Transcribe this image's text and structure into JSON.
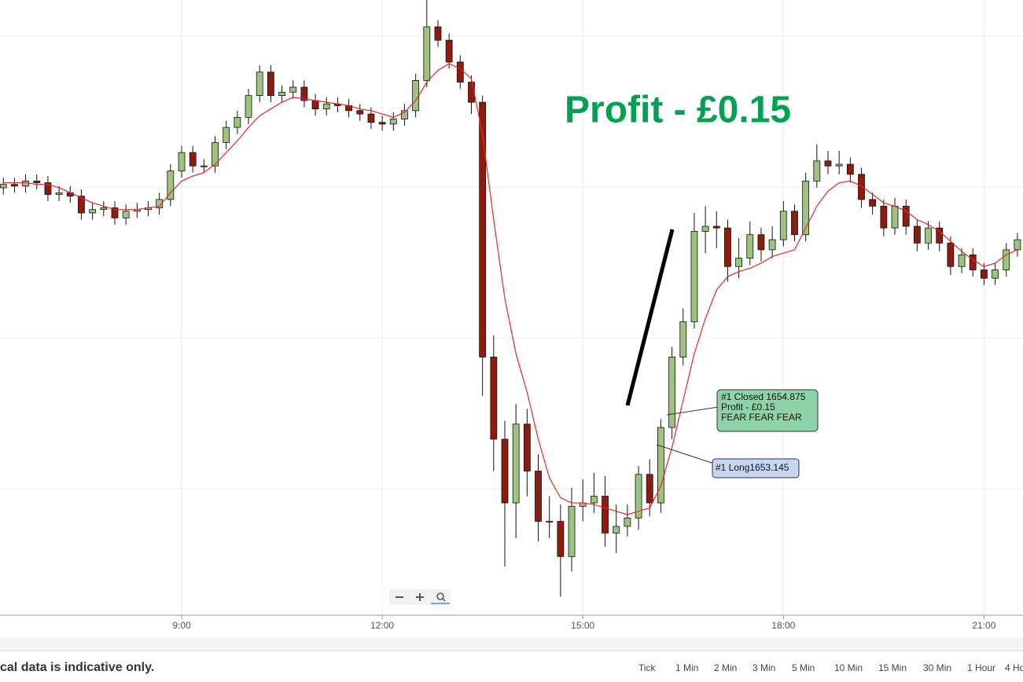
{
  "chart_data": {
    "type": "candlestick",
    "title": "Profit - £0.15",
    "xlim": [
      377,
      1295
    ],
    "xticks": [
      {
        "value": 540,
        "label": "9:00"
      },
      {
        "value": 720,
        "label": "12:00"
      },
      {
        "value": 900,
        "label": "15:00"
      },
      {
        "value": 1080,
        "label": "18:00"
      },
      {
        "value": 1260,
        "label": "21:00"
      }
    ],
    "ylim": [
      1642.9,
      1679.6
    ],
    "grid": true,
    "up_color": "#9dc47f",
    "down_color": "#8e1b0e",
    "x": [
      380,
      390,
      400,
      410,
      420,
      430,
      440,
      450,
      460,
      470,
      480,
      490,
      500,
      510,
      520,
      530,
      540,
      550,
      560,
      570,
      580,
      590,
      600,
      610,
      620,
      630,
      640,
      650,
      660,
      670,
      680,
      690,
      700,
      710,
      720,
      730,
      740,
      750,
      760,
      770,
      780,
      790,
      800,
      810,
      820,
      830,
      840,
      850,
      860,
      870,
      880,
      890,
      900,
      910,
      920,
      930,
      940,
      950,
      960,
      970,
      980,
      990,
      1000,
      1010,
      1020,
      1030,
      1040,
      1050,
      1060,
      1070,
      1080,
      1090,
      1100,
      1110,
      1120,
      1130,
      1140,
      1150,
      1160,
      1170,
      1180,
      1190,
      1200,
      1210,
      1220,
      1230,
      1240,
      1250,
      1260,
      1270,
      1280,
      1290
    ],
    "open": [
      1668.4,
      1668.6,
      1668.5,
      1668.8,
      1668.7,
      1668.0,
      1668.1,
      1667.9,
      1666.9,
      1667.1,
      1667.2,
      1666.6,
      1667.0,
      1667.1,
      1667.2,
      1667.7,
      1669.4,
      1670.5,
      1669.7,
      1669.7,
      1671.1,
      1672.0,
      1672.6,
      1673.9,
      1675.3,
      1673.9,
      1674.1,
      1674.4,
      1673.6,
      1673.1,
      1673.4,
      1673.3,
      1673.0,
      1672.8,
      1672.3,
      1672.2,
      1672.5,
      1673.0,
      1674.8,
      1678.0,
      1677.2,
      1675.9,
      1674.7,
      1673.5,
      1658.3,
      1653.4,
      1649.6,
      1654.3,
      1651.5,
      1648.5,
      1648.5,
      1646.4,
      1649.4,
      1649.6,
      1650.0,
      1647.8,
      1648.2,
      1648.7,
      1651.3,
      1649.6,
      1654.1,
      1658.3,
      1660.4,
      1665.8,
      1666.1,
      1666.0,
      1663.7,
      1664.2,
      1665.6,
      1664.7,
      1665.3,
      1667.0,
      1665.6,
      1668.8,
      1670.0,
      1669.7,
      1669.8,
      1669.2,
      1667.7,
      1667.3,
      1666.0,
      1667.3,
      1666.1,
      1665.1,
      1666.0,
      1665.1,
      1663.7,
      1664.4,
      1663.5,
      1663.0,
      1663.5,
      1664.7
    ],
    "high": [
      1669.0,
      1669.0,
      1669.2,
      1669.2,
      1669.1,
      1668.5,
      1668.5,
      1668.3,
      1667.5,
      1667.6,
      1667.6,
      1667.4,
      1667.5,
      1667.6,
      1668.1,
      1669.8,
      1670.9,
      1670.9,
      1670.1,
      1671.5,
      1672.4,
      1673.0,
      1674.3,
      1675.7,
      1675.7,
      1674.5,
      1674.8,
      1674.8,
      1674.0,
      1673.8,
      1673.8,
      1673.7,
      1673.4,
      1673.2,
      1672.7,
      1672.9,
      1673.4,
      1675.2,
      1679.6,
      1678.4,
      1677.6,
      1676.3,
      1675.1,
      1673.9,
      1659.6,
      1654.5,
      1655.5,
      1655.2,
      1652.5,
      1650.0,
      1649.5,
      1650.5,
      1651.0,
      1651.4,
      1651.2,
      1649.5,
      1649.5,
      1651.8,
      1652.2,
      1654.6,
      1658.9,
      1661.2,
      1666.9,
      1667.3,
      1667.0,
      1666.5,
      1665.4,
      1666.4,
      1666.0,
      1666.1,
      1667.6,
      1667.4,
      1669.3,
      1671.0,
      1670.6,
      1670.6,
      1670.2,
      1669.6,
      1668.1,
      1667.7,
      1667.8,
      1667.7,
      1666.5,
      1666.4,
      1666.4,
      1665.5,
      1664.8,
      1664.8,
      1663.9,
      1663.9,
      1665.1,
      1665.7
    ],
    "low": [
      1668.0,
      1668.1,
      1668.1,
      1668.3,
      1667.6,
      1667.6,
      1667.5,
      1666.5,
      1666.5,
      1666.7,
      1666.2,
      1666.2,
      1666.6,
      1666.7,
      1666.8,
      1667.3,
      1669.0,
      1669.3,
      1669.3,
      1669.3,
      1670.7,
      1671.6,
      1672.2,
      1673.5,
      1673.5,
      1673.5,
      1673.7,
      1673.2,
      1672.7,
      1672.7,
      1672.9,
      1672.6,
      1672.4,
      1671.9,
      1671.8,
      1671.8,
      1672.1,
      1672.6,
      1674.4,
      1676.8,
      1675.5,
      1674.3,
      1672.8,
      1656.0,
      1651.5,
      1645.8,
      1647.5,
      1650.0,
      1647.3,
      1647.5,
      1644.0,
      1645.5,
      1648.5,
      1649.0,
      1647.0,
      1646.6,
      1647.6,
      1648.0,
      1648.8,
      1649.0,
      1653.4,
      1657.8,
      1660.0,
      1664.5,
      1664.8,
      1662.8,
      1663.0,
      1663.8,
      1664.0,
      1664.2,
      1664.9,
      1665.2,
      1665.2,
      1668.4,
      1669.2,
      1669.2,
      1668.7,
      1667.2,
      1666.8,
      1665.5,
      1665.6,
      1665.6,
      1664.6,
      1664.7,
      1664.6,
      1663.2,
      1663.3,
      1663.1,
      1662.6,
      1662.6,
      1663.1,
      1664.3
    ],
    "close": [
      1668.6,
      1668.5,
      1668.8,
      1668.7,
      1668.0,
      1668.1,
      1667.9,
      1666.9,
      1667.1,
      1667.2,
      1666.6,
      1667.0,
      1667.1,
      1667.2,
      1667.7,
      1669.4,
      1670.5,
      1669.7,
      1669.7,
      1671.1,
      1672.0,
      1672.6,
      1673.9,
      1675.3,
      1673.9,
      1674.1,
      1674.4,
      1673.6,
      1673.1,
      1673.4,
      1673.3,
      1673.0,
      1672.8,
      1672.3,
      1672.2,
      1672.5,
      1673.0,
      1674.8,
      1678.0,
      1677.2,
      1675.9,
      1674.7,
      1673.5,
      1658.3,
      1653.4,
      1649.6,
      1654.3,
      1651.5,
      1648.5,
      1648.5,
      1646.4,
      1649.4,
      1649.6,
      1650.0,
      1647.8,
      1648.2,
      1648.7,
      1651.3,
      1649.6,
      1654.1,
      1658.3,
      1660.4,
      1665.8,
      1666.1,
      1666.0,
      1663.7,
      1664.2,
      1665.6,
      1664.7,
      1665.3,
      1667.0,
      1665.6,
      1668.8,
      1670.0,
      1669.7,
      1669.8,
      1669.2,
      1667.7,
      1667.3,
      1666.0,
      1667.3,
      1666.1,
      1665.1,
      1666.0,
      1665.1,
      1663.7,
      1664.4,
      1663.5,
      1663.0,
      1663.5,
      1664.7,
      1665.3
    ],
    "ma": {
      "color": "#e8262b",
      "values": [
        1668.7,
        1668.7,
        1668.7,
        1668.6,
        1668.6,
        1668.4,
        1668.1,
        1667.8,
        1667.5,
        1667.3,
        1667.1,
        1667.1,
        1667.1,
        1667.2,
        1667.3,
        1668.1,
        1668.8,
        1669.1,
        1669.3,
        1669.8,
        1670.5,
        1671.2,
        1672.0,
        1672.7,
        1673.1,
        1673.5,
        1673.8,
        1673.7,
        1673.6,
        1673.5,
        1673.4,
        1673.3,
        1673.1,
        1673.0,
        1672.8,
        1672.6,
        1672.9,
        1673.6,
        1674.7,
        1675.4,
        1675.8,
        1675.5,
        1674.9,
        1671.6,
        1666.5,
        1661.8,
        1658.5,
        1656.2,
        1653.4,
        1651.1,
        1649.9,
        1649.6,
        1649.6,
        1649.5,
        1649.3,
        1649.1,
        1648.9,
        1649.1,
        1649.3,
        1650.6,
        1652.9,
        1655.7,
        1658.5,
        1660.6,
        1662.3,
        1663.1,
        1663.4,
        1663.6,
        1663.9,
        1664.3,
        1664.5,
        1664.7,
        1666.0,
        1667.3,
        1668.2,
        1668.7,
        1668.8,
        1668.5,
        1668.0,
        1667.5,
        1667.3,
        1667.0,
        1666.5,
        1666.2,
        1665.8,
        1665.2,
        1664.6,
        1664.1,
        1663.7,
        1663.9,
        1664.4,
        1664.7
      ]
    },
    "annotations": {
      "closed": [
        "#1 Closed 1654.875",
        "Profit - £0.15",
        "FEAR FEAR FEAR"
      ],
      "long": "#1 Long1653.145"
    }
  },
  "footer": {
    "note": "cal data is indicative only.",
    "timeframes": [
      "Tick",
      "1 Min",
      "2 Min",
      "3 Min",
      "5 Min",
      "10 Min",
      "15 Min",
      "30 Min",
      "1 Hour",
      "4 Ho"
    ]
  }
}
